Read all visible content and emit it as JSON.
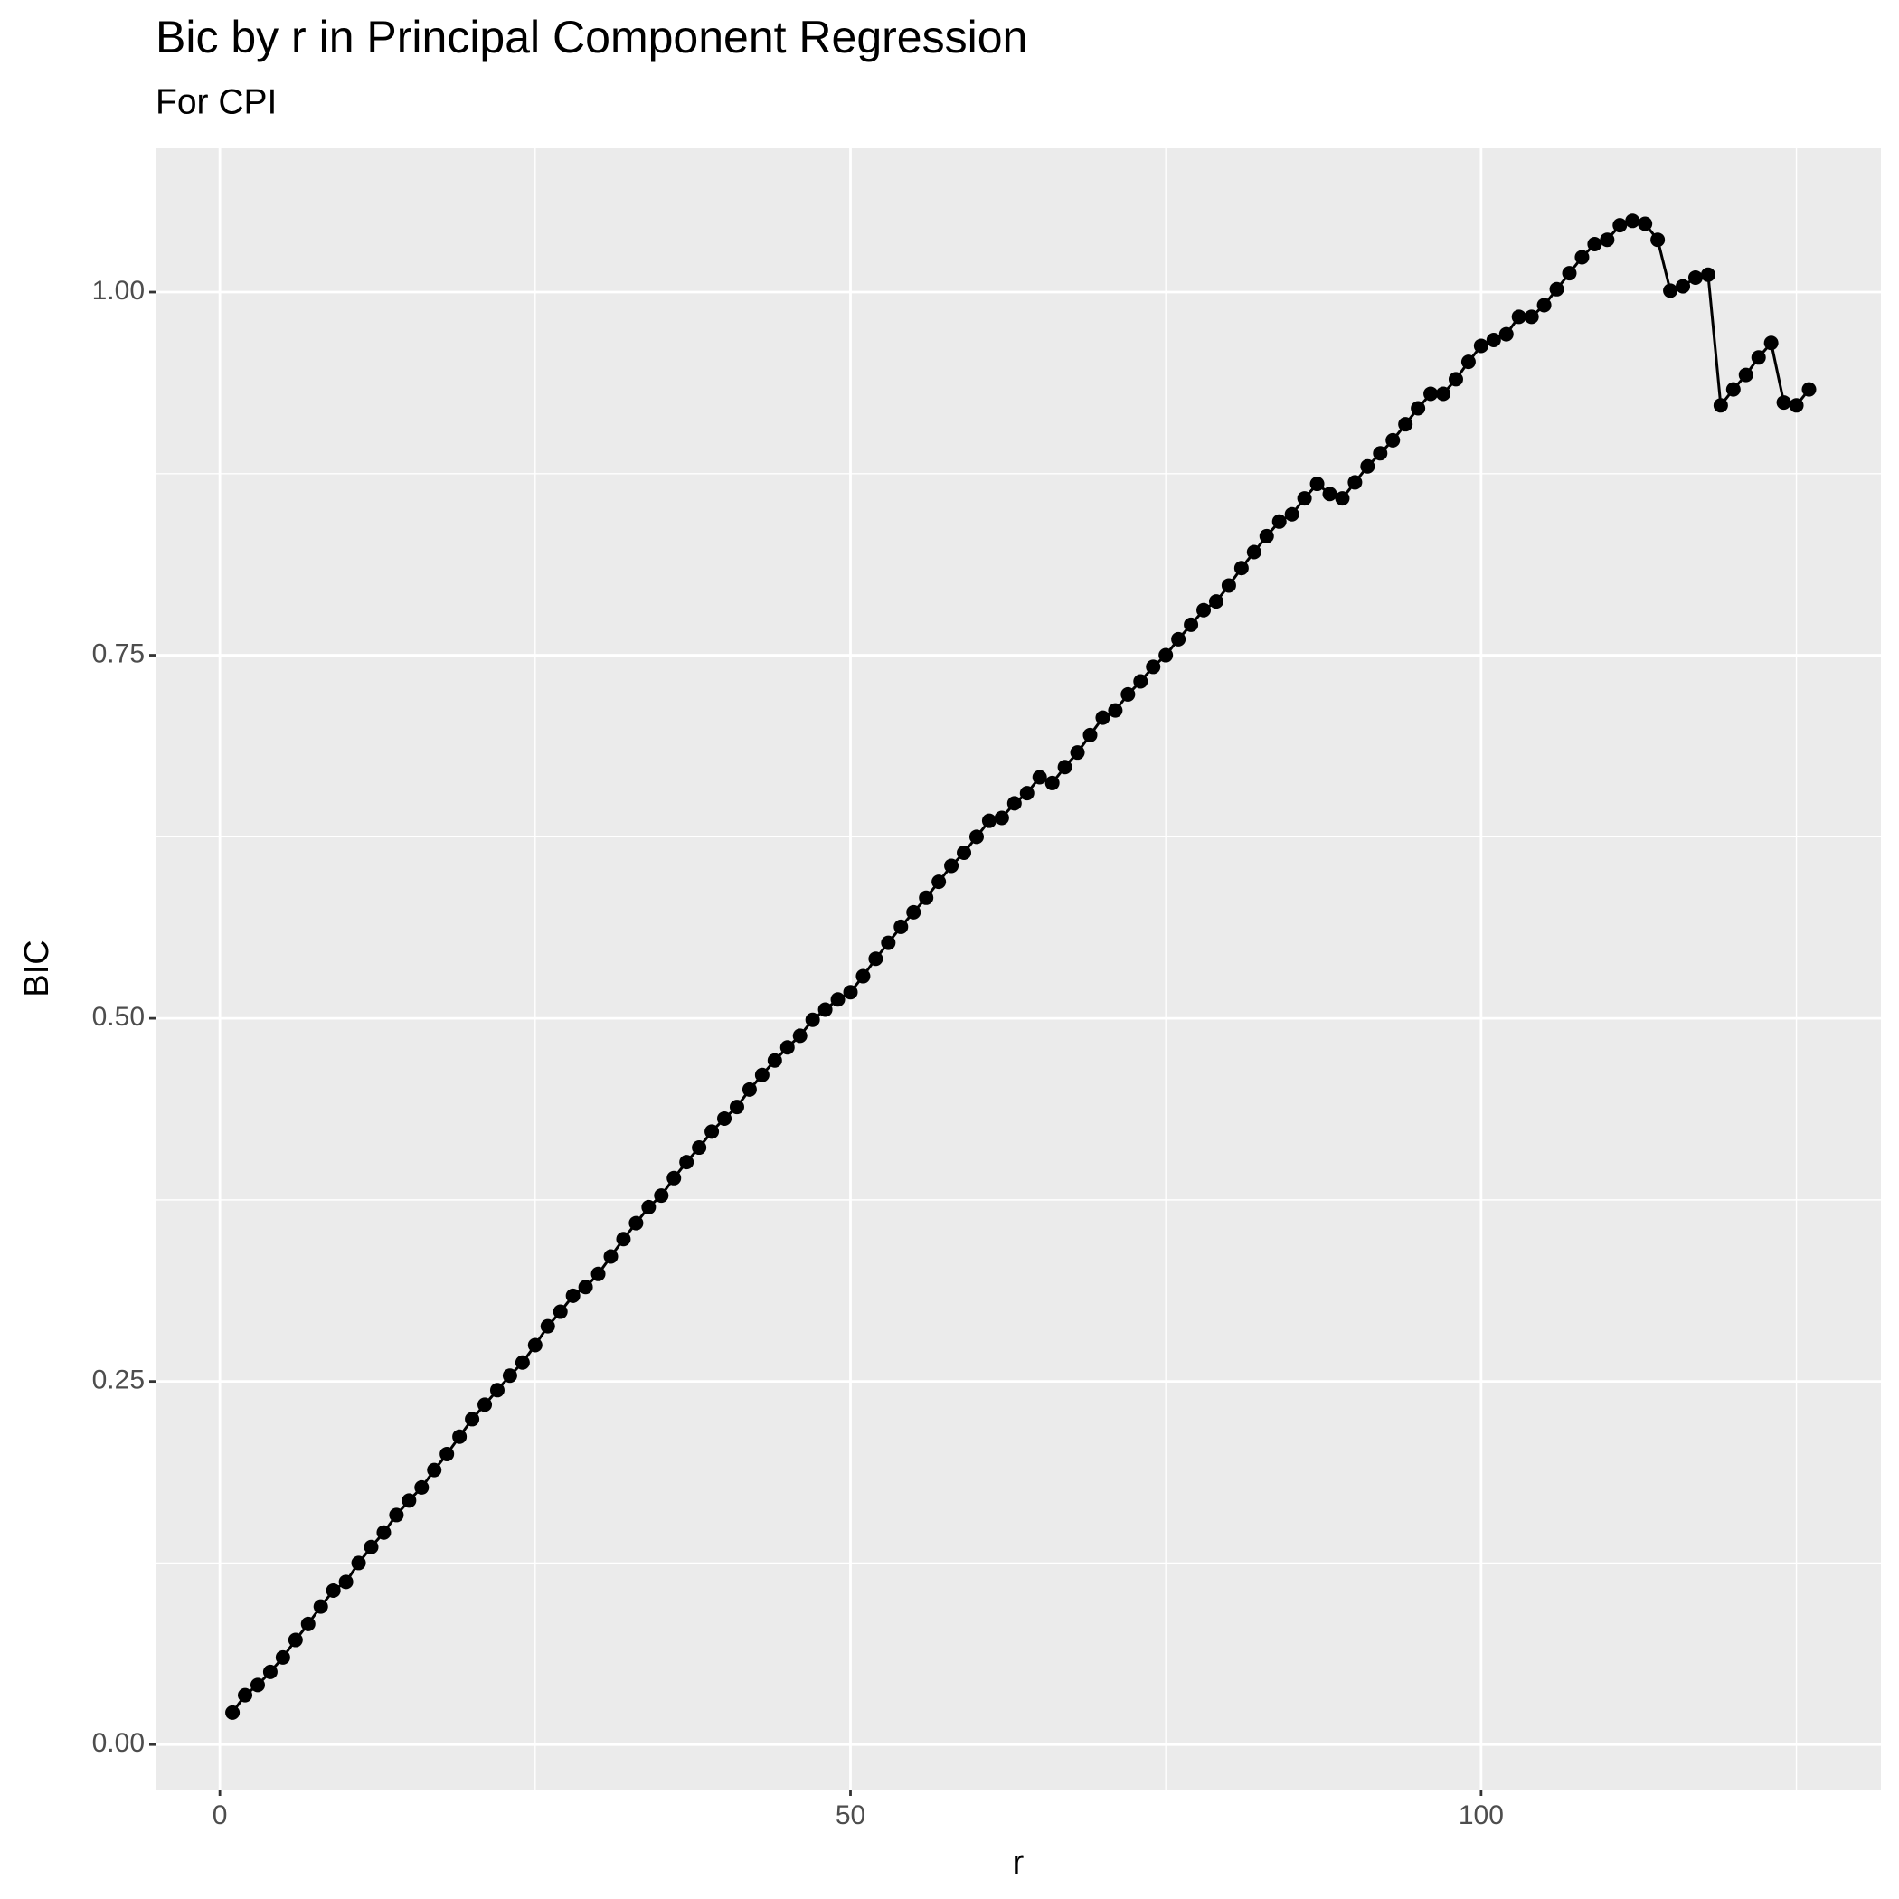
{
  "chart_data": {
    "type": "line",
    "title": "Bic by r in Principal Component Regression",
    "subtitle": "For CPI",
    "x_label": "r",
    "y_label": "BIC",
    "x": [
      1,
      2,
      3,
      4,
      5,
      6,
      7,
      8,
      9,
      10,
      11,
      12,
      13,
      14,
      15,
      16,
      17,
      18,
      19,
      20,
      21,
      22,
      23,
      24,
      25,
      26,
      27,
      28,
      29,
      30,
      31,
      32,
      33,
      34,
      35,
      36,
      37,
      38,
      39,
      40,
      41,
      42,
      43,
      44,
      45,
      46,
      47,
      48,
      49,
      50,
      51,
      52,
      53,
      54,
      55,
      56,
      57,
      58,
      59,
      60,
      61,
      62,
      63,
      64,
      65,
      66,
      67,
      68,
      69,
      70,
      71,
      72,
      73,
      74,
      75,
      76,
      77,
      78,
      79,
      80,
      81,
      82,
      83,
      84,
      85,
      86,
      87,
      88,
      89,
      90,
      91,
      92,
      93,
      94,
      95,
      96,
      97,
      98,
      99,
      100,
      101,
      102,
      103,
      104,
      105,
      106,
      107,
      108,
      109,
      110,
      111,
      112,
      113,
      114,
      115,
      116,
      117,
      118,
      119,
      120,
      121,
      122,
      123,
      124,
      125,
      126
    ],
    "series": [
      {
        "name": "BIC",
        "color": "#000000",
        "values": [
          0.022,
          0.034,
          0.041,
          0.05,
          0.06,
          0.072,
          0.083,
          0.095,
          0.106,
          0.112,
          0.125,
          0.136,
          0.146,
          0.158,
          0.168,
          0.177,
          0.189,
          0.2,
          0.212,
          0.224,
          0.234,
          0.244,
          0.254,
          0.263,
          0.275,
          0.288,
          0.298,
          0.309,
          0.315,
          0.324,
          0.336,
          0.348,
          0.359,
          0.37,
          0.378,
          0.39,
          0.401,
          0.411,
          0.422,
          0.431,
          0.439,
          0.451,
          0.461,
          0.471,
          0.48,
          0.488,
          0.499,
          0.506,
          0.513,
          0.518,
          0.529,
          0.541,
          0.552,
          0.563,
          0.573,
          0.583,
          0.594,
          0.605,
          0.614,
          0.625,
          0.636,
          0.638,
          0.648,
          0.655,
          0.666,
          0.662,
          0.673,
          0.683,
          0.695,
          0.707,
          0.712,
          0.723,
          0.732,
          0.742,
          0.75,
          0.761,
          0.771,
          0.781,
          0.787,
          0.798,
          0.81,
          0.821,
          0.832,
          0.842,
          0.847,
          0.858,
          0.868,
          0.861,
          0.858,
          0.869,
          0.88,
          0.889,
          0.898,
          0.909,
          0.92,
          0.93,
          0.93,
          0.94,
          0.952,
          0.963,
          0.967,
          0.971,
          0.983,
          0.983,
          0.991,
          1.002,
          1.013,
          1.024,
          1.033,
          1.036,
          1.046,
          1.049,
          1.047,
          1.036,
          1.001,
          1.004,
          1.01,
          1.012,
          0.922,
          0.933,
          0.943,
          0.955,
          0.965,
          0.924,
          0.922,
          0.933
        ]
      }
    ],
    "xlim": [
      -5.1,
      131.7
    ],
    "ylim": [
      -0.031,
      1.099
    ],
    "xticks": [
      0,
      50,
      100
    ],
    "yticks": [
      {
        "value": 0,
        "label": "0.00"
      },
      0.25,
      {
        "value": 0.5,
        "label": "0.50"
      },
      0.75,
      {
        "value": 1,
        "label": "1.00"
      }
    ],
    "x_minor_ticks": [
      25,
      75,
      125
    ],
    "y_minor_ticks": [
      0.125,
      0.375,
      0.625,
      0.875
    ],
    "grid": true,
    "markers": true
  }
}
